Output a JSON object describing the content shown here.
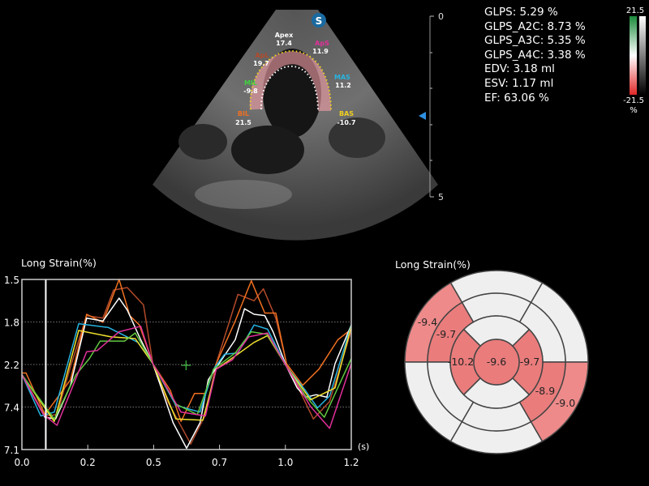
{
  "echo": {
    "logo": "S",
    "depth_top": "0",
    "depth_bottom": "5",
    "segments": [
      {
        "name": "Apex",
        "value": "17.4",
        "color": "#ffffff"
      },
      {
        "name": "ApS",
        "value": "11.9",
        "color": "#e0309a"
      },
      {
        "name": "ApL",
        "value": "19.7",
        "color": "#b34a2a"
      },
      {
        "name": "MAS",
        "value": "11.2",
        "color": "#28b4e0"
      },
      {
        "name": "MIL",
        "value": "-9.8",
        "color": "#40d040"
      },
      {
        "name": "BIL",
        "value": "21.5",
        "color": "#f07020"
      },
      {
        "name": "BAS",
        "value": "-10.7",
        "color": "#f0d020"
      }
    ]
  },
  "stats": [
    "GLPS: 5.29 %",
    "GLPS_A2C: 8.73 %",
    "GLPS_A3C: 5.35 %",
    "GLPS_A4C: 3.38 %",
    "EDV: 3.18 ml",
    "ESV: 1.17 ml",
    "EF: 63.06 %"
  ],
  "colorbar": {
    "max": "21.5",
    "min": "-21.5",
    "unit": "%",
    "colors": [
      "#1a8a3a",
      "#ffffff",
      "#e02828"
    ]
  },
  "chart_data": {
    "type": "line",
    "title": "Long Strain(%)",
    "xlabel": "(s)",
    "xlim": [
      0,
      1.2
    ],
    "x_ticks": [
      0,
      0.24,
      0.48,
      0.72,
      0.96,
      1.2
    ],
    "x_tick_labels": [
      "0.0",
      "0.2",
      "0.5",
      "0.7",
      "1.0",
      "1.2"
    ],
    "ylim": [
      0,
      4
    ],
    "y_ticks": [
      0,
      1,
      2,
      3,
      4
    ],
    "y_tick_labels": [
      "7.1",
      "7.4",
      "2.2",
      "1.8",
      "1.5"
    ],
    "grid": "horizontal dotted",
    "cursor_time": 0.087,
    "marker": {
      "t": 0.598,
      "y": 1.98,
      "color": "#40c040"
    },
    "series": [
      {
        "color": "#b34a2a",
        "points": [
          [
            0,
            1.76
          ],
          [
            0.084,
            0.79
          ],
          [
            0.128,
            0.82
          ],
          [
            0.177,
            1.95
          ],
          [
            0.236,
            3.15
          ],
          [
            0.295,
            3.09
          ],
          [
            0.334,
            3.75
          ],
          [
            0.384,
            3.81
          ],
          [
            0.443,
            3.4
          ],
          [
            0.477,
            2.02
          ],
          [
            0.531,
            1.13
          ],
          [
            0.615,
            0.13
          ],
          [
            0.669,
            0.82
          ],
          [
            0.708,
            2.02
          ],
          [
            0.787,
            3.65
          ],
          [
            0.846,
            3.5
          ],
          [
            0.88,
            3.78
          ],
          [
            0.925,
            3.09
          ],
          [
            0.964,
            2.02
          ],
          [
            1.062,
            0.72
          ],
          [
            1.121,
            1.13
          ],
          [
            1.2,
            2.8
          ]
        ]
      },
      {
        "color": "#f07020",
        "points": [
          [
            0,
            1.8
          ],
          [
            0.015,
            1.8
          ],
          [
            0.084,
            0.82
          ],
          [
            0.177,
            1.64
          ],
          [
            0.236,
            3.18
          ],
          [
            0.295,
            2.99
          ],
          [
            0.354,
            4.0
          ],
          [
            0.393,
            3.15
          ],
          [
            0.428,
            2.93
          ],
          [
            0.477,
            2.02
          ],
          [
            0.541,
            1.39
          ],
          [
            0.58,
            0.66
          ],
          [
            0.629,
            1.32
          ],
          [
            0.669,
            1.32
          ],
          [
            0.708,
            2.02
          ],
          [
            0.777,
            3.02
          ],
          [
            0.836,
            3.97
          ],
          [
            0.885,
            3.21
          ],
          [
            0.925,
            3.21
          ],
          [
            0.964,
            2.02
          ],
          [
            1.023,
            1.51
          ],
          [
            1.082,
            1.89
          ],
          [
            1.151,
            2.58
          ],
          [
            1.2,
            2.83
          ]
        ]
      },
      {
        "color": "#ffffff",
        "points": [
          [
            0,
            1.76
          ],
          [
            0.084,
            0.76
          ],
          [
            0.123,
            0.72
          ],
          [
            0.177,
            1.51
          ],
          [
            0.236,
            3.09
          ],
          [
            0.295,
            3.02
          ],
          [
            0.354,
            3.56
          ],
          [
            0.384,
            3.28
          ],
          [
            0.433,
            2.58
          ],
          [
            0.477,
            2.02
          ],
          [
            0.511,
            1.39
          ],
          [
            0.551,
            0.63
          ],
          [
            0.6,
            0.03
          ],
          [
            0.649,
            0.63
          ],
          [
            0.679,
            1.64
          ],
          [
            0.718,
            2.02
          ],
          [
            0.777,
            2.58
          ],
          [
            0.811,
            3.31
          ],
          [
            0.846,
            3.18
          ],
          [
            0.885,
            3.15
          ],
          [
            0.915,
            2.77
          ],
          [
            0.964,
            1.95
          ],
          [
            1.003,
            1.45
          ],
          [
            1.033,
            1.23
          ],
          [
            1.072,
            1.29
          ],
          [
            1.111,
            1.23
          ],
          [
            1.141,
            2.02
          ],
          [
            1.2,
            2.93
          ]
        ]
      },
      {
        "color": "#28b4e0",
        "points": [
          [
            0,
            1.76
          ],
          [
            0.069,
            0.79
          ],
          [
            0.118,
            0.88
          ],
          [
            0.207,
            2.96
          ],
          [
            0.315,
            2.87
          ],
          [
            0.423,
            2.52
          ],
          [
            0.477,
            2.02
          ],
          [
            0.561,
            1.04
          ],
          [
            0.649,
            0.88
          ],
          [
            0.698,
            1.89
          ],
          [
            0.738,
            2.24
          ],
          [
            0.787,
            2.27
          ],
          [
            0.846,
            2.93
          ],
          [
            0.895,
            2.83
          ],
          [
            0.964,
            1.95
          ],
          [
            1.033,
            1.39
          ],
          [
            1.077,
            0.98
          ],
          [
            1.121,
            1.26
          ],
          [
            1.2,
            2.93
          ]
        ]
      },
      {
        "color": "#f0e030",
        "points": [
          [
            0,
            1.76
          ],
          [
            0.118,
            0.66
          ],
          [
            0.207,
            2.8
          ],
          [
            0.325,
            2.65
          ],
          [
            0.413,
            2.61
          ],
          [
            0.477,
            2.02
          ],
          [
            0.561,
            0.72
          ],
          [
            0.659,
            0.69
          ],
          [
            0.708,
            1.89
          ],
          [
            0.777,
            2.2
          ],
          [
            0.846,
            2.52
          ],
          [
            0.895,
            2.68
          ],
          [
            0.964,
            1.95
          ],
          [
            1.052,
            1.17
          ],
          [
            1.141,
            1.45
          ],
          [
            1.2,
            2.9
          ]
        ]
      },
      {
        "color": "#60c840",
        "points": [
          [
            0,
            1.76
          ],
          [
            0.118,
            0.72
          ],
          [
            0.197,
            1.76
          ],
          [
            0.246,
            2.14
          ],
          [
            0.285,
            2.55
          ],
          [
            0.374,
            2.55
          ],
          [
            0.413,
            2.74
          ],
          [
            0.477,
            2.02
          ],
          [
            0.561,
            1.07
          ],
          [
            0.639,
            0.82
          ],
          [
            0.698,
            1.89
          ],
          [
            0.777,
            2.27
          ],
          [
            0.836,
            2.77
          ],
          [
            0.895,
            2.71
          ],
          [
            0.964,
            1.95
          ],
          [
            1.033,
            1.26
          ],
          [
            1.102,
            0.76
          ],
          [
            1.2,
            2.14
          ]
        ]
      },
      {
        "color": "#e0309a",
        "points": [
          [
            0,
            1.76
          ],
          [
            0.079,
            0.82
          ],
          [
            0.128,
            0.57
          ],
          [
            0.236,
            2.3
          ],
          [
            0.275,
            2.33
          ],
          [
            0.354,
            2.77
          ],
          [
            0.433,
            2.9
          ],
          [
            0.477,
            2.02
          ],
          [
            0.58,
            0.88
          ],
          [
            0.669,
            0.79
          ],
          [
            0.708,
            1.89
          ],
          [
            0.767,
            2.11
          ],
          [
            0.826,
            2.65
          ],
          [
            0.895,
            2.74
          ],
          [
            0.964,
            1.95
          ],
          [
            1.052,
            1.01
          ],
          [
            1.121,
            0.5
          ],
          [
            1.2,
            2.02
          ]
        ]
      }
    ]
  },
  "bullseye": {
    "title": "Long Strain(%)",
    "highlight_color": "#ea7c7c",
    "empty_color": "#efefef",
    "segments": [
      {
        "ring": "basal",
        "position": "upper-left",
        "value": "-9.4",
        "highlighted": true
      },
      {
        "ring": "mid",
        "position": "upper-left",
        "value": "-9.7",
        "highlighted": true
      },
      {
        "ring": "apical",
        "position": "left",
        "value": "-10.2",
        "highlighted": true
      },
      {
        "ring": "apex",
        "position": "center",
        "value": "-9.6",
        "highlighted": true
      },
      {
        "ring": "apical",
        "position": "right",
        "value": "-9.7",
        "highlighted": true
      },
      {
        "ring": "mid",
        "position": "lower-right",
        "value": "-8.9",
        "highlighted": true
      },
      {
        "ring": "basal",
        "position": "lower-right",
        "value": "-9.0",
        "highlighted": true
      }
    ]
  }
}
